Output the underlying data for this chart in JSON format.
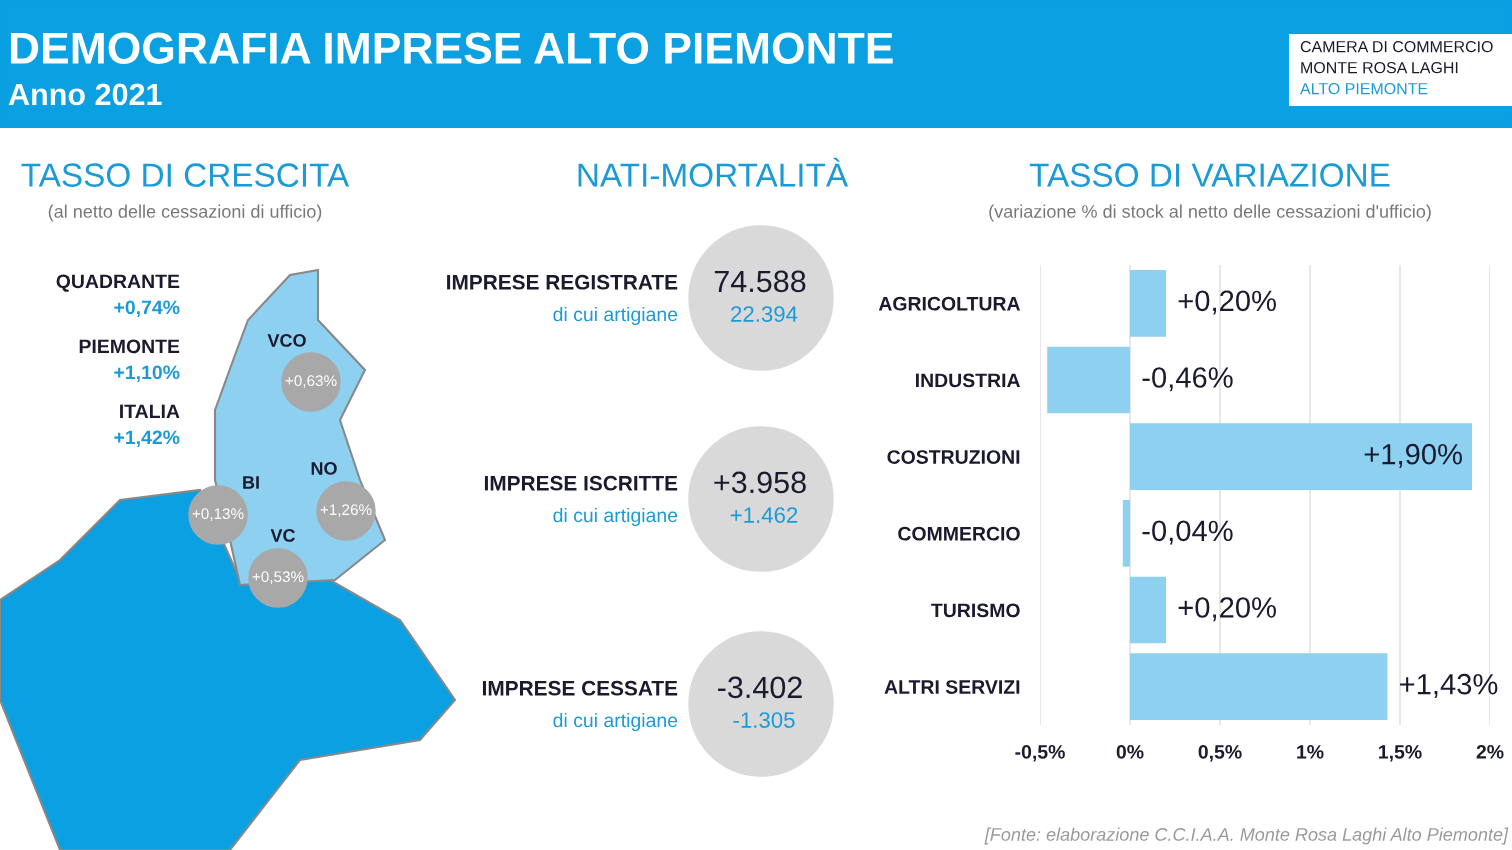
{
  "chart_data": [
    {
      "type": "other",
      "title": "DEMOGRAFIA IMPRESE ALTO PIEMONTE",
      "subtitle": "Anno 2021",
      "annotations": [
        "CAMERA DI COMMERCIO",
        "MONTE ROSA LAGHI",
        "ALTO PIEMONTE"
      ]
    },
    {
      "type": "other",
      "title": "TASSO DI CRESCITA",
      "subtitle": "(al netto delle cessazioni di ufficio)",
      "annotations": [
        "QUADRANTE",
        "+0,74%",
        "PIEMONTE",
        "+1,10%",
        "ITALIA",
        "+1,42%",
        "VCO",
        "+0,63%",
        "BI",
        "+0,13%",
        "NO",
        "+1,26%",
        "VC",
        "+0,53%"
      ]
    },
    {
      "type": "other",
      "title": "NATI-MORTALITÀ",
      "annotations": [
        "IMPRESE REGISTRATE",
        "di cui artigiane",
        "74.588",
        "22.394",
        "IMPRESE ISCRITTE",
        "di cui artigiane",
        "+3.958",
        "+1.462",
        "IMPRESE CESSATE",
        "di cui artigiane",
        "-3.402",
        "-1.305"
      ]
    },
    {
      "type": "bar",
      "orientation": "horizontal",
      "title": "TASSO DI VARIAZIONE",
      "subtitle": "(variazione % di stock al netto delle cessazioni d'ufficio)",
      "categories": [
        "AGRICOLTURA",
        "INDUSTRIA",
        "COSTRUZIONI",
        "COMMERCIO",
        "TURISMO",
        "ALTRI SERVIZI"
      ],
      "values": [
        0.2,
        -0.46,
        1.9,
        -0.04,
        0.2,
        1.43
      ],
      "color": "#8dd0ef",
      "value_labels": [
        "+0,20%",
        "-0,46%",
        "+1,90%",
        "-0,04%",
        "+0,20%",
        "+1,43%"
      ],
      "xlim": [
        -0.5,
        2
      ],
      "xticks": [
        {
          "value": -0.5,
          "label": "-0,5%"
        },
        {
          "value": 0,
          "label": "0%"
        },
        {
          "value": 0.5,
          "label": "0,5%"
        },
        {
          "value": 1,
          "label": "1%"
        },
        {
          "value": 1.5,
          "label": "1,5%"
        },
        {
          "value": 2,
          "label": "2%"
        }
      ],
      "grid": "x",
      "annotations": [
        "[Fonte: elaborazione C.C.I.A.A. Monte Rosa Laghi Alto Piemonte]"
      ]
    }
  ]
}
